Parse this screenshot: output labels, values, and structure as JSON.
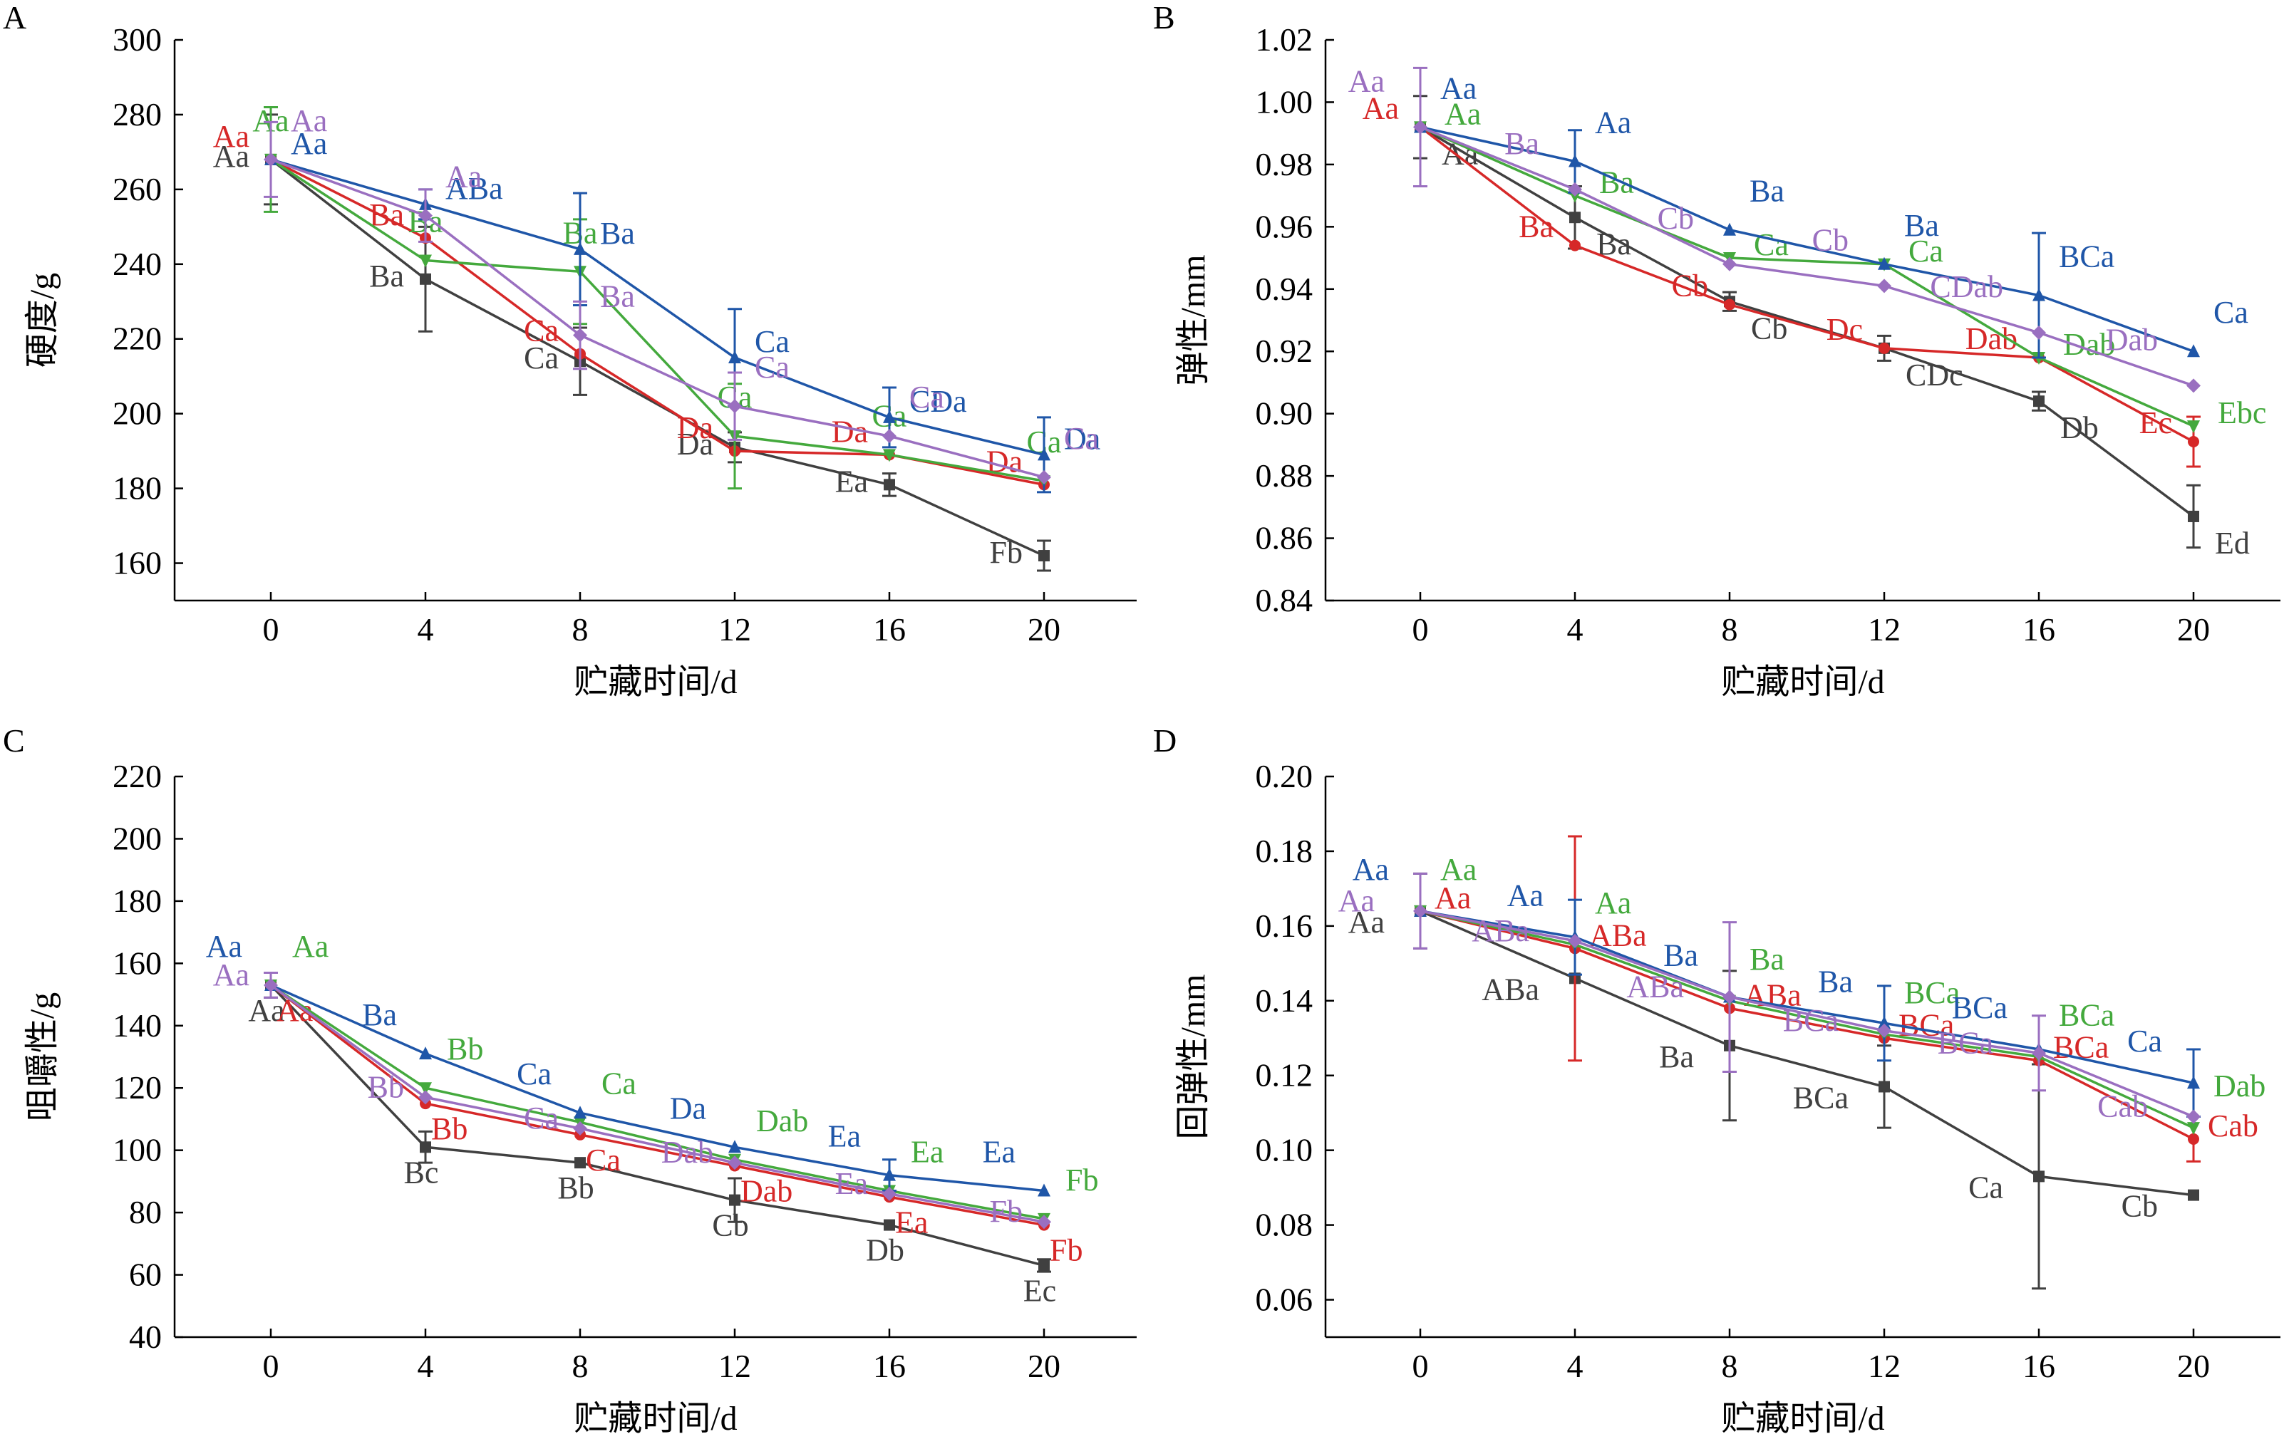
{
  "chart_data": [
    {
      "panel": "A",
      "type": "line",
      "x": [
        0,
        4,
        8,
        12,
        16,
        20
      ],
      "xlabel": "贮藏时间/d",
      "ylabel": "硬度/g",
      "ylim": [
        150,
        300
      ],
      "yticks": [
        160,
        180,
        200,
        220,
        240,
        260,
        280,
        300
      ],
      "series": [
        {
          "color": "#404040",
          "marker": "square",
          "values": [
            268,
            236,
            214,
            191,
            181,
            162
          ],
          "err": [
            12,
            14,
            9,
            4,
            3,
            4
          ],
          "labels": [
            "Aa",
            "Ba",
            "Ca",
            "Da",
            "Ea",
            "Fb"
          ]
        },
        {
          "color": "#d62828",
          "marker": "circle",
          "values": [
            268,
            247,
            216,
            190,
            189,
            181
          ],
          "err": [
            0,
            0,
            0,
            0,
            0,
            0
          ],
          "labels": [
            "Aa",
            "Ba",
            "Ca",
            "Da",
            "Da",
            "Da"
          ]
        },
        {
          "color": "#44a93d",
          "marker": "triangle-down",
          "values": [
            268,
            241,
            238,
            194,
            189,
            182
          ],
          "err": [
            14,
            0,
            14,
            14,
            0,
            0
          ],
          "labels": [
            "Aa",
            "Ba",
            "Ba",
            "Ca",
            "Ca",
            "Ca"
          ]
        },
        {
          "color": "#1f56a8",
          "marker": "triangle",
          "values": [
            268,
            256,
            244,
            215,
            199,
            189
          ],
          "err": [
            0,
            4,
            15,
            13,
            8,
            10
          ],
          "labels": [
            "Aa",
            "ABa",
            "Ba",
            "Ca",
            "CDa",
            "Da"
          ]
        },
        {
          "color": "#9a6fc0",
          "marker": "diamond",
          "values": [
            268,
            253,
            221,
            202,
            194,
            183
          ],
          "err": [
            10,
            7,
            9,
            9,
            0,
            0
          ],
          "labels": [
            "Aa",
            "Aa",
            "Ba",
            "Ca",
            "Ca",
            "Ca"
          ]
        }
      ]
    },
    {
      "panel": "B",
      "type": "line",
      "x": [
        0,
        4,
        8,
        12,
        16,
        20
      ],
      "xlabel": "贮藏时间/d",
      "ylabel": "弹性/mm",
      "ylim": [
        0.84,
        1.02
      ],
      "yticks": [
        0.84,
        0.86,
        0.88,
        0.9,
        0.92,
        0.94,
        0.96,
        0.98,
        1.0,
        1.02
      ],
      "series": [
        {
          "color": "#404040",
          "marker": "square",
          "values": [
            0.992,
            0.963,
            0.936,
            0.921,
            0.904,
            0.867
          ],
          "err": [
            0.01,
            0.01,
            0.003,
            0.004,
            0.003,
            0.01
          ],
          "labels": [
            "Aa",
            "Ba",
            "Cb",
            "CDc",
            "Db",
            "Ed"
          ]
        },
        {
          "color": "#d62828",
          "marker": "circle",
          "values": [
            0.992,
            0.954,
            0.935,
            0.921,
            0.918,
            0.891
          ],
          "err": [
            0,
            0,
            0,
            0,
            0,
            0.008
          ],
          "labels": [
            "Aa",
            "Ba",
            "Cb",
            "Dc",
            "Dab",
            "Ec"
          ]
        },
        {
          "color": "#44a93d",
          "marker": "triangle-down",
          "values": [
            0.992,
            0.97,
            0.95,
            0.948,
            0.918,
            0.896
          ],
          "err": [
            0,
            0,
            0,
            0,
            0,
            0
          ],
          "labels": [
            "Aa",
            "Ba",
            "Ca",
            "Ca",
            "Dab",
            "Ebc"
          ]
        },
        {
          "color": "#1f56a8",
          "marker": "triangle",
          "values": [
            0.992,
            0.981,
            0.959,
            0.948,
            0.938,
            0.92
          ],
          "err": [
            0,
            0.01,
            0,
            0,
            0.02,
            0
          ],
          "labels": [
            "Aa",
            "Aa",
            "Ba",
            "Ba",
            "BCa",
            "Ca"
          ]
        },
        {
          "color": "#9a6fc0",
          "marker": "diamond",
          "values": [
            0.992,
            0.972,
            0.948,
            0.941,
            0.926,
            0.909
          ],
          "err": [
            0.019,
            0,
            0,
            0,
            0,
            0
          ],
          "labels": [
            "Aa",
            "Ba",
            "Cb",
            "Cb",
            "CDab",
            "Dab"
          ]
        }
      ]
    },
    {
      "panel": "C",
      "type": "line",
      "x": [
        0,
        4,
        8,
        12,
        16,
        20
      ],
      "xlabel": "贮藏时间/d",
      "ylabel": "咀嚼性/g",
      "ylim": [
        40,
        220
      ],
      "yticks": [
        40,
        60,
        80,
        100,
        120,
        140,
        160,
        180,
        200,
        220
      ],
      "series": [
        {
          "color": "#404040",
          "marker": "square",
          "values": [
            153,
            101,
            96,
            84,
            76,
            63
          ],
          "err": [
            4,
            5,
            0,
            7,
            0,
            2
          ],
          "labels": [
            "Aa",
            "Bc",
            "Bb",
            "Cb",
            "Db",
            "Ec"
          ]
        },
        {
          "color": "#d62828",
          "marker": "circle",
          "values": [
            153,
            115,
            105,
            95,
            85,
            76
          ],
          "err": [
            0,
            0,
            0,
            0,
            0,
            0
          ],
          "labels": [
            "Aa",
            "Bb",
            "Ca",
            "Dab",
            "Ea",
            "Fb"
          ]
        },
        {
          "color": "#44a93d",
          "marker": "triangle-down",
          "values": [
            153,
            120,
            109,
            97,
            87,
            78
          ],
          "err": [
            0,
            0,
            0,
            0,
            0,
            0
          ],
          "labels": [
            "Aa",
            "Bb",
            "Ca",
            "Dab",
            "Ea",
            "Fb"
          ]
        },
        {
          "color": "#1f56a8",
          "marker": "triangle",
          "values": [
            153,
            131,
            112,
            101,
            92,
            87
          ],
          "err": [
            0,
            0,
            0,
            0,
            5,
            0
          ],
          "labels": [
            "Aa",
            "Ba",
            "Ca",
            "Da",
            "Ea",
            "Ea"
          ]
        },
        {
          "color": "#9a6fc0",
          "marker": "diamond",
          "values": [
            153,
            117,
            107,
            96,
            86,
            77
          ],
          "err": [
            4,
            0,
            0,
            0,
            0,
            0
          ],
          "labels": [
            "Aa",
            "Bb",
            "Ca",
            "Dab",
            "Ea",
            "Fb"
          ]
        }
      ]
    },
    {
      "panel": "D",
      "type": "line",
      "x": [
        0,
        4,
        8,
        12,
        16,
        20
      ],
      "xlabel": "贮藏时间/d",
      "ylabel": "回弹性/mm",
      "ylim": [
        0.05,
        0.2
      ],
      "yticks": [
        0.06,
        0.08,
        0.1,
        0.12,
        0.14,
        0.16,
        0.18,
        0.2
      ],
      "series": [
        {
          "color": "#404040",
          "marker": "square",
          "values": [
            0.164,
            0.146,
            0.128,
            0.117,
            0.093,
            0.088
          ],
          "err": [
            0.01,
            0,
            0.02,
            0.011,
            0.03,
            0
          ],
          "labels": [
            "Aa",
            "ABa",
            "Ba",
            "BCa",
            "Ca",
            "Cb"
          ]
        },
        {
          "color": "#d62828",
          "marker": "circle",
          "values": [
            0.164,
            0.154,
            0.138,
            0.13,
            0.124,
            0.103
          ],
          "err": [
            0,
            0.03,
            0,
            0,
            0,
            0.006
          ],
          "labels": [
            "Aa",
            "ABa",
            "ABa",
            "BCa",
            "BCa",
            "Cab"
          ]
        },
        {
          "color": "#44a93d",
          "marker": "triangle-down",
          "values": [
            0.164,
            0.155,
            0.14,
            0.131,
            0.125,
            0.106
          ],
          "err": [
            0,
            0,
            0,
            0,
            0,
            0
          ],
          "labels": [
            "Aa",
            "Aa",
            "Ba",
            "BCa",
            "BCa",
            "Dab"
          ]
        },
        {
          "color": "#1f56a8",
          "marker": "triangle",
          "values": [
            0.164,
            0.157,
            0.141,
            0.134,
            0.127,
            0.118
          ],
          "err": [
            0,
            0.01,
            0,
            0.01,
            0,
            0.009
          ],
          "labels": [
            "Aa",
            "Aa",
            "Ba",
            "Ba",
            "BCa",
            "Ca"
          ]
        },
        {
          "color": "#9a6fc0",
          "marker": "diamond",
          "values": [
            0.164,
            0.156,
            0.141,
            0.132,
            0.126,
            0.109
          ],
          "err": [
            0.01,
            0,
            0.02,
            0,
            0.01,
            0
          ],
          "labels": [
            "Aa",
            "ABa",
            "ABa",
            "BCa",
            "BCa",
            "Cab"
          ]
        }
      ]
    }
  ]
}
